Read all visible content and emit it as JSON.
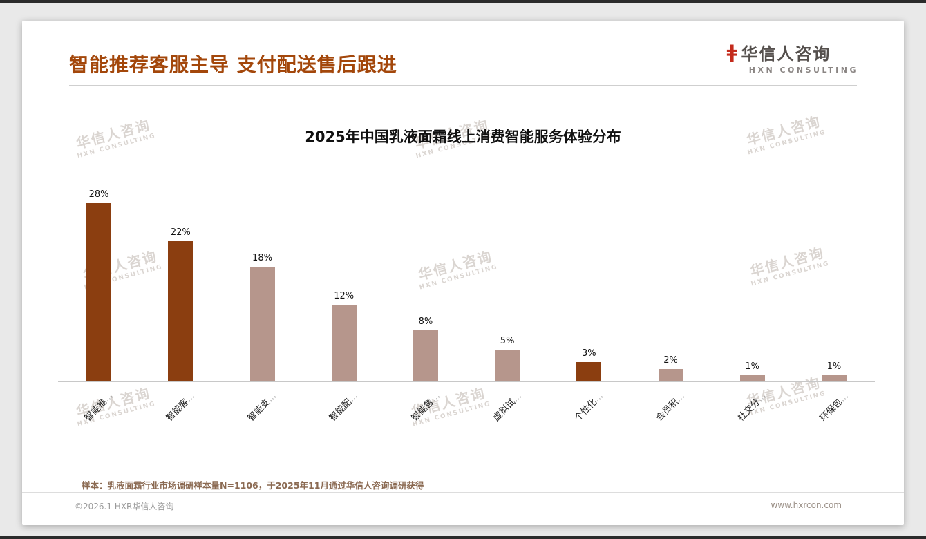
{
  "header": {
    "title": "智能推荐客服主导 支付配送售后跟进"
  },
  "logo": {
    "mark": "ǂ",
    "name": "华信人咨询",
    "subtitle": "HXN CONSULTING"
  },
  "watermark": {
    "line1": "华信人咨询",
    "line2": "HXN CONSULTING"
  },
  "chart_data": {
    "type": "bar",
    "title": "2025年中国乳液面霜线上消费智能服务体验分布",
    "categories": [
      "智能推...",
      "智能客...",
      "智能支...",
      "智能配...",
      "智能售...",
      "虚拟试...",
      "个性化...",
      "会员积...",
      "社交分...",
      "环保包..."
    ],
    "values": [
      28,
      22,
      18,
      12,
      8,
      5,
      3,
      2,
      1,
      1
    ],
    "value_labels": [
      "28%",
      "22%",
      "18%",
      "12%",
      "8%",
      "5%",
      "3%",
      "2%",
      "1%",
      "1%"
    ],
    "bar_colors": [
      "#8b3e10",
      "#8b3e10",
      "#b6968c",
      "#b6968c",
      "#b6968c",
      "#b6968c",
      "#8b3e10",
      "#b6968c",
      "#b6968c",
      "#b6968c"
    ],
    "colors": {
      "accent": "#a3470b",
      "bar_dark": "#8b3e10",
      "bar_light": "#b6968c"
    },
    "xlabel": "",
    "ylabel": "",
    "ylim": [
      0,
      30
    ],
    "unit": "%",
    "grid": false,
    "legend": "none"
  },
  "note": "样本：乳液面霜行业市场调研样本量N=1106，于2025年11月通过华信人咨询调研获得",
  "footer": {
    "left": "©2026.1 HXR华信人咨询",
    "right": "www.hxrcon.com"
  }
}
